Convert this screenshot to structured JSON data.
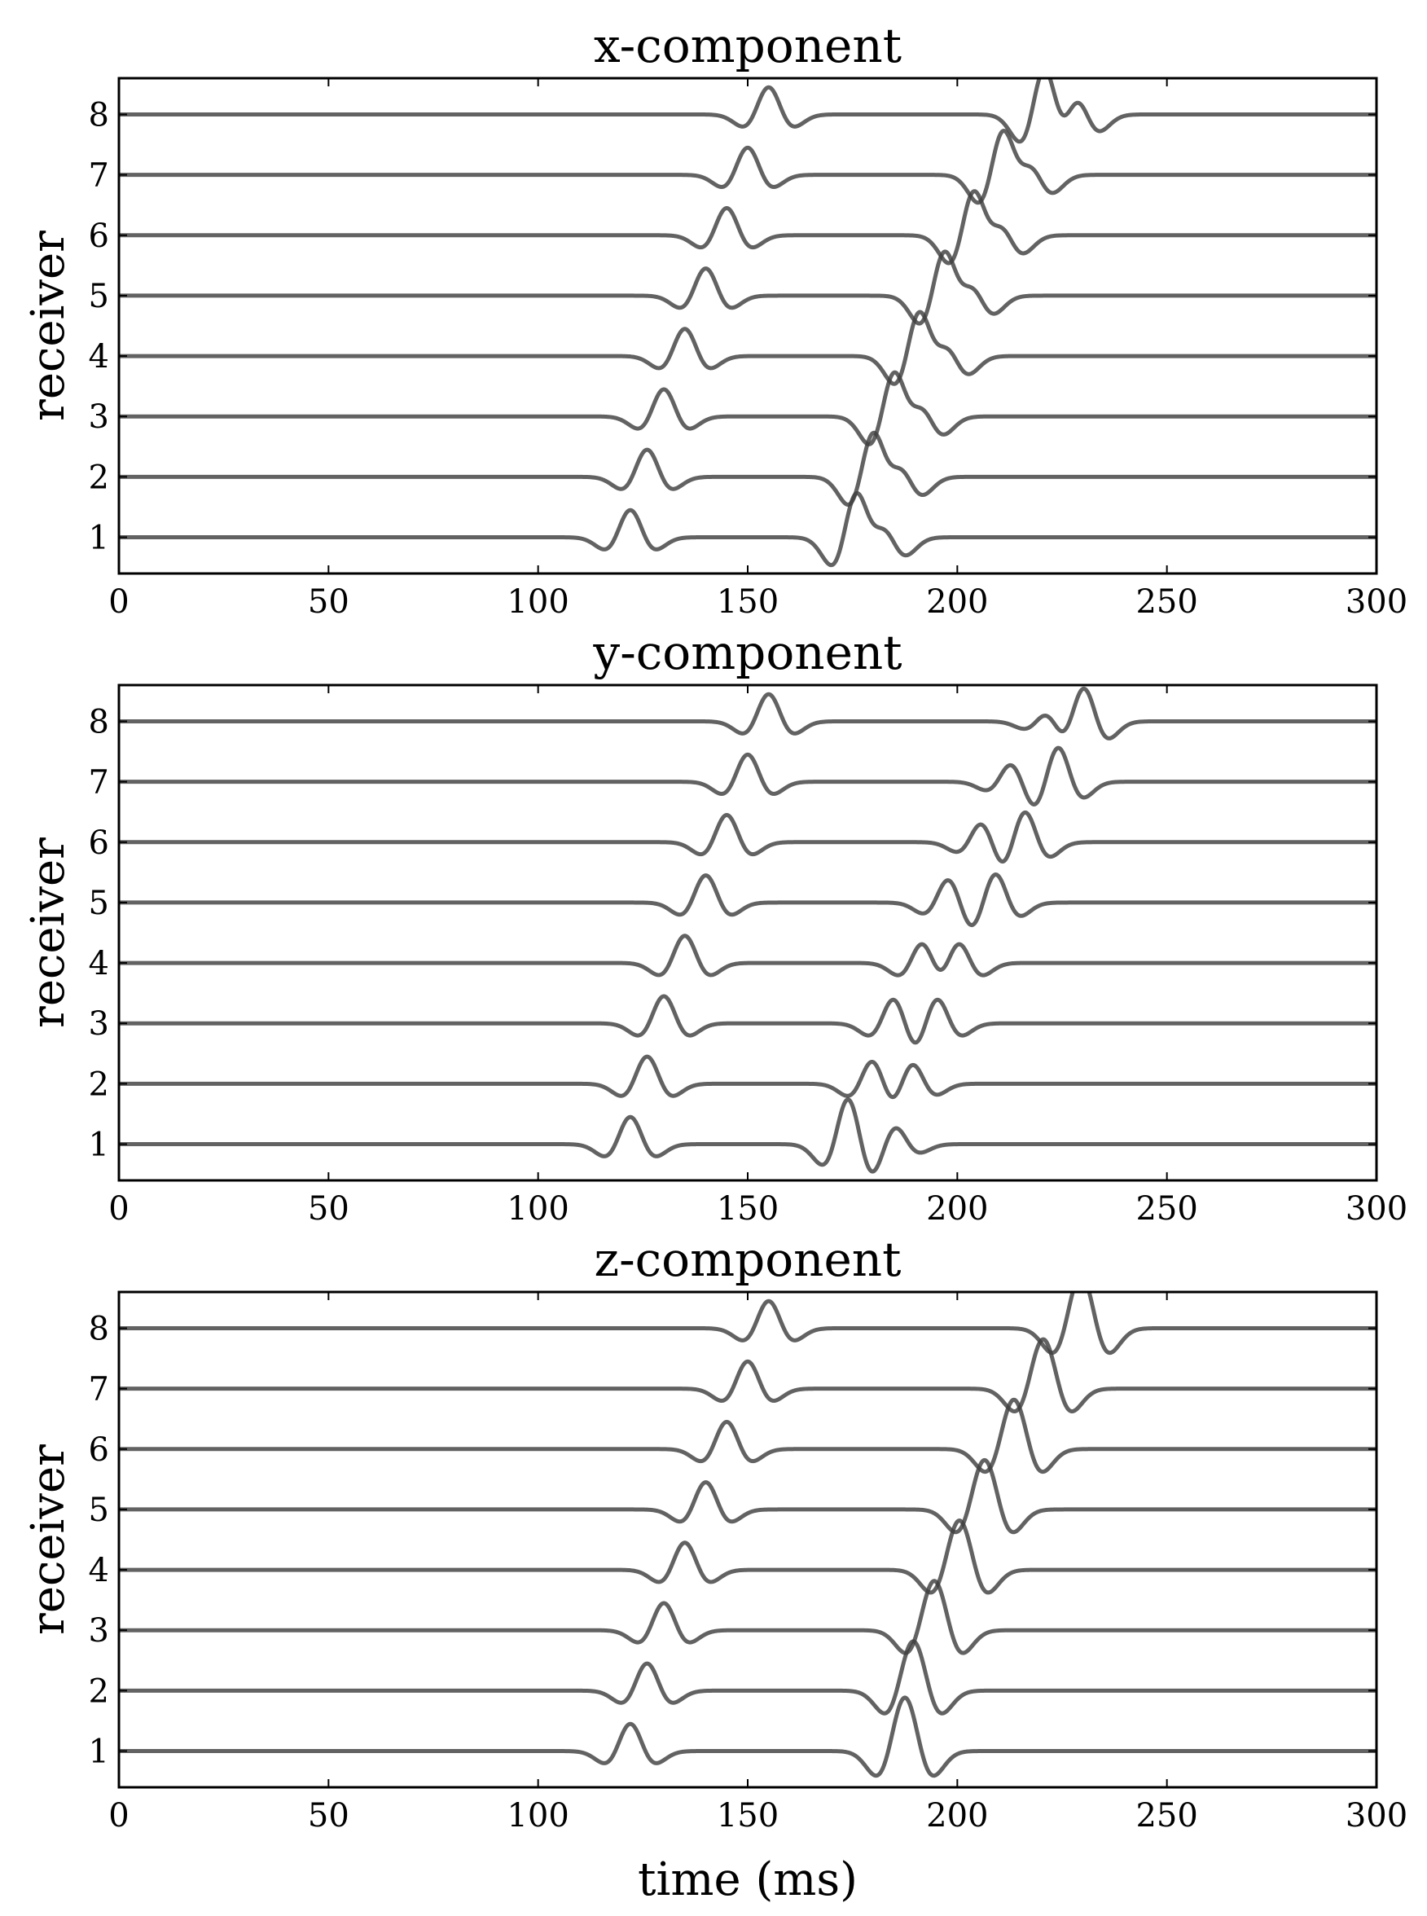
{
  "chart_data": [
    {
      "type": "line",
      "title": "x-component",
      "xlabel": "",
      "ylabel": "receiver",
      "xlim": [
        0,
        300
      ],
      "ylim": [
        0.4,
        8.6
      ],
      "xticks": [
        "0",
        "50",
        "100",
        "150",
        "200",
        "250",
        "300"
      ],
      "yticks": [
        "1",
        "2",
        "3",
        "4",
        "5",
        "6",
        "7",
        "8"
      ],
      "grid": false,
      "series": [
        {
          "receiver": 1,
          "arrivals": [
            {
              "t": 122,
              "amp": 1.0
            },
            {
              "t": 176,
              "amp": 2.2
            },
            {
              "t": 182,
              "amp": 1.3
            }
          ]
        },
        {
          "receiver": 2,
          "arrivals": [
            {
              "t": 126,
              "amp": 1.0
            },
            {
              "t": 180,
              "amp": 2.2
            },
            {
              "t": 186,
              "amp": 1.3
            }
          ]
        },
        {
          "receiver": 3,
          "arrivals": [
            {
              "t": 130,
              "amp": 1.0
            },
            {
              "t": 185,
              "amp": 2.2
            },
            {
              "t": 191,
              "amp": 1.3
            }
          ]
        },
        {
          "receiver": 4,
          "arrivals": [
            {
              "t": 135,
              "amp": 1.0
            },
            {
              "t": 191,
              "amp": 2.2
            },
            {
              "t": 197,
              "amp": 1.3
            }
          ]
        },
        {
          "receiver": 5,
          "arrivals": [
            {
              "t": 140,
              "amp": 1.0
            },
            {
              "t": 197,
              "amp": 2.2
            },
            {
              "t": 203,
              "amp": 1.3
            }
          ]
        },
        {
          "receiver": 6,
          "arrivals": [
            {
              "t": 145,
              "amp": 1.0
            },
            {
              "t": 204,
              "amp": 2.2
            },
            {
              "t": 210,
              "amp": 1.3
            }
          ]
        },
        {
          "receiver": 7,
          "arrivals": [
            {
              "t": 150,
              "amp": 1.0
            },
            {
              "t": 211,
              "amp": 2.2
            },
            {
              "t": 217,
              "amp": 1.3
            }
          ]
        },
        {
          "receiver": 8,
          "arrivals": [
            {
              "t": 155,
              "amp": 1.0
            },
            {
              "t": 221,
              "amp": 2.2
            },
            {
              "t": 228,
              "amp": 1.3
            }
          ]
        }
      ]
    },
    {
      "type": "line",
      "title": "y-component",
      "xlabel": "",
      "ylabel": "receiver",
      "xlim": [
        0,
        300
      ],
      "ylim": [
        0.4,
        8.6
      ],
      "xticks": [
        "0",
        "50",
        "100",
        "150",
        "200",
        "250",
        "300"
      ],
      "yticks": [
        "1",
        "2",
        "3",
        "4",
        "5",
        "6",
        "7",
        "8"
      ],
      "grid": false,
      "series": [
        {
          "receiver": 1,
          "arrivals": [
            {
              "t": 122,
              "amp": 1.0
            },
            {
              "t": 174,
              "amp": 1.7
            },
            {
              "t": 185,
              "amp": 0.7
            }
          ]
        },
        {
          "receiver": 2,
          "arrivals": [
            {
              "t": 126,
              "amp": 1.0
            },
            {
              "t": 180,
              "amp": 1.0
            },
            {
              "t": 189,
              "amp": 0.9
            }
          ]
        },
        {
          "receiver": 3,
          "arrivals": [
            {
              "t": 130,
              "amp": 1.0
            },
            {
              "t": 185,
              "amp": 1.0
            },
            {
              "t": 195,
              "amp": 1.0
            }
          ]
        },
        {
          "receiver": 4,
          "arrivals": [
            {
              "t": 135,
              "amp": 1.0
            },
            {
              "t": 192,
              "amp": 1.0
            },
            {
              "t": 200,
              "amp": 1.0
            }
          ]
        },
        {
          "receiver": 5,
          "arrivals": [
            {
              "t": 140,
              "amp": 1.0
            },
            {
              "t": 198,
              "amp": 0.9
            },
            {
              "t": 209,
              "amp": 1.1
            }
          ]
        },
        {
          "receiver": 6,
          "arrivals": [
            {
              "t": 145,
              "amp": 1.0
            },
            {
              "t": 206,
              "amp": 0.8
            },
            {
              "t": 216,
              "amp": 1.2
            }
          ]
        },
        {
          "receiver": 7,
          "arrivals": [
            {
              "t": 150,
              "amp": 1.0
            },
            {
              "t": 213,
              "amp": 0.7
            },
            {
              "t": 224,
              "amp": 1.3
            }
          ]
        },
        {
          "receiver": 8,
          "arrivals": [
            {
              "t": 155,
              "amp": 1.0
            },
            {
              "t": 222,
              "amp": 0.6
            },
            {
              "t": 230,
              "amp": 1.4
            }
          ]
        }
      ]
    },
    {
      "type": "line",
      "title": "z-component",
      "xlabel": "time (ms)",
      "ylabel": "receiver",
      "xlim": [
        0,
        300
      ],
      "ylim": [
        0.4,
        8.6
      ],
      "xticks": [
        "0",
        "50",
        "100",
        "150",
        "200",
        "250",
        "300"
      ],
      "yticks": [
        "1",
        "2",
        "3",
        "4",
        "5",
        "6",
        "7",
        "8"
      ],
      "grid": false,
      "series": [
        {
          "receiver": 1,
          "arrivals": [
            {
              "t": 122,
              "amp": 1.0
            },
            {
              "t": 186,
              "amp": 1.3
            },
            {
              "t": 189,
              "amp": 1.3
            }
          ]
        },
        {
          "receiver": 2,
          "arrivals": [
            {
              "t": 126,
              "amp": 1.0
            },
            {
              "t": 188,
              "amp": 1.2
            },
            {
              "t": 191,
              "amp": 1.2
            }
          ]
        },
        {
          "receiver": 3,
          "arrivals": [
            {
              "t": 130,
              "amp": 1.0
            },
            {
              "t": 193,
              "amp": 1.2
            },
            {
              "t": 196,
              "amp": 1.2
            }
          ]
        },
        {
          "receiver": 4,
          "arrivals": [
            {
              "t": 135,
              "amp": 1.0
            },
            {
              "t": 199,
              "amp": 1.2
            },
            {
              "t": 202,
              "amp": 1.2
            }
          ]
        },
        {
          "receiver": 5,
          "arrivals": [
            {
              "t": 140,
              "amp": 1.0
            },
            {
              "t": 205,
              "amp": 1.2
            },
            {
              "t": 208,
              "amp": 1.2
            }
          ]
        },
        {
          "receiver": 6,
          "arrivals": [
            {
              "t": 145,
              "amp": 1.0
            },
            {
              "t": 212,
              "amp": 1.2
            },
            {
              "t": 215,
              "amp": 1.2
            }
          ]
        },
        {
          "receiver": 7,
          "arrivals": [
            {
              "t": 150,
              "amp": 1.0
            },
            {
              "t": 219,
              "amp": 1.2
            },
            {
              "t": 222,
              "amp": 1.2
            }
          ]
        },
        {
          "receiver": 8,
          "arrivals": [
            {
              "t": 155,
              "amp": 1.0
            },
            {
              "t": 228,
              "amp": 1.3
            },
            {
              "t": 231,
              "amp": 1.3
            }
          ]
        }
      ]
    }
  ]
}
